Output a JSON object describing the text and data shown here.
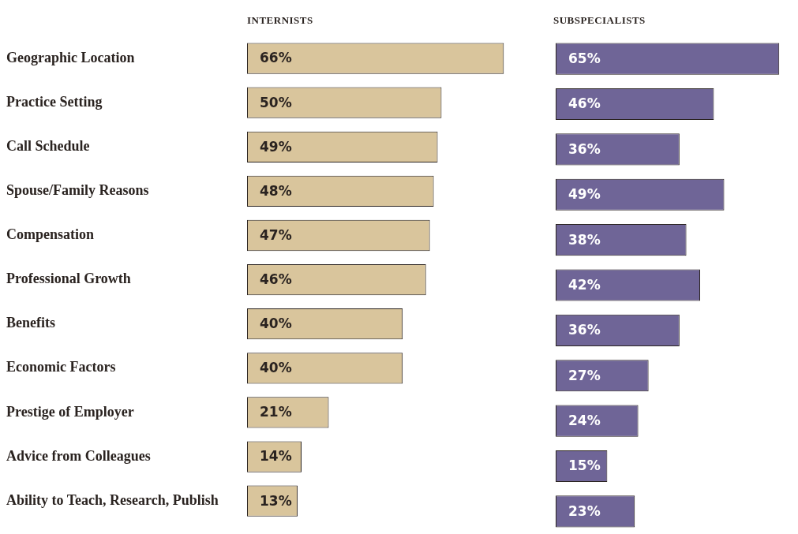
{
  "chart_data": [
    {
      "type": "bar",
      "orientation": "horizontal",
      "title": "INTERNISTS",
      "categories": [
        "Geographic Location",
        "Practice Setting",
        "Call Schedule",
        "Spouse/Family Reasons",
        "Compensation",
        "Professional Growth",
        "Benefits",
        "Economic Factors",
        "Prestige of Employer",
        "Advice from Colleagues",
        "Ability to Teach, Research, Publish"
      ],
      "values": [
        66,
        50,
        49,
        48,
        47,
        46,
        40,
        40,
        21,
        14,
        13
      ],
      "value_labels": [
        "66%",
        "50%",
        "49%",
        "48%",
        "47%",
        "46%",
        "40%",
        "40%",
        "21%",
        "14%",
        "13%"
      ],
      "color": "#d9c59c",
      "tick_labels": "y"
    },
    {
      "type": "bar",
      "orientation": "horizontal",
      "title": "SUBSPECIALISTS",
      "categories": [
        null,
        null,
        null,
        null,
        null,
        null,
        null,
        null,
        null,
        null,
        null
      ],
      "values": [
        65,
        46,
        36,
        49,
        38,
        42,
        36,
        27,
        24,
        15,
        23
      ],
      "value_labels": [
        "65%",
        "46%",
        "36%",
        "49%",
        "38%",
        "42%",
        "36%",
        "27%",
        "24%",
        "15%",
        "23%"
      ],
      "color": "#6f6597",
      "tick_labels": false
    }
  ]
}
